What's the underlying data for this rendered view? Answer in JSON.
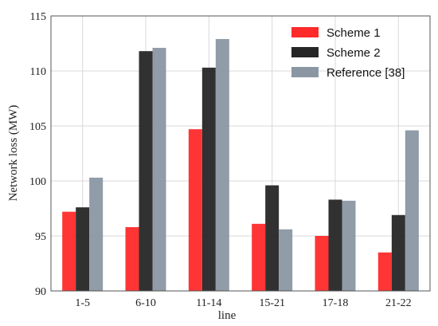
{
  "chart_data": {
    "type": "bar",
    "title": "",
    "xlabel": "line",
    "ylabel": "Network loss (MW)",
    "ylim": [
      90,
      115
    ],
    "yticks": [
      90,
      95,
      100,
      105,
      110,
      115
    ],
    "categories": [
      "1-5",
      "6-10",
      "11-14",
      "15-21",
      "17-18",
      "21-22"
    ],
    "series": [
      {
        "name": "Scheme 1",
        "color": "#ff2a2a",
        "values": [
          97.2,
          95.8,
          104.7,
          96.1,
          95.0,
          93.5
        ]
      },
      {
        "name": "Scheme 2",
        "color": "#262626",
        "values": [
          97.6,
          111.8,
          110.3,
          99.6,
          98.3,
          96.9
        ]
      },
      {
        "name": "Reference [38]",
        "color": "#8a97a3",
        "values": [
          100.3,
          112.1,
          112.9,
          95.6,
          98.2,
          104.6
        ]
      }
    ],
    "grid": true,
    "legend": "top-right"
  }
}
